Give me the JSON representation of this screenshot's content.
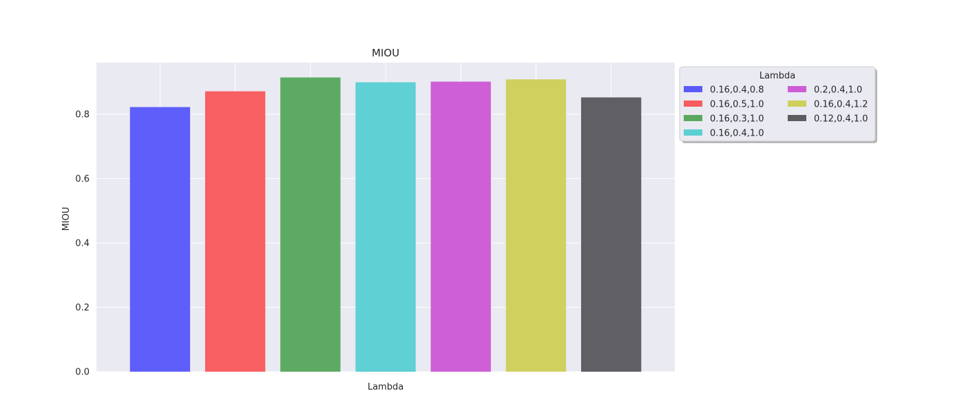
{
  "chart_data": {
    "type": "bar",
    "title": "MIOU",
    "xlabel": "Lambda",
    "ylabel": "MIOU",
    "ylim": [
      0,
      0.96
    ],
    "yticks": [
      "0.0",
      "0.2",
      "0.4",
      "0.6",
      "0.8"
    ],
    "grid": true,
    "legend": {
      "title": "Lambda",
      "placement": "outside-top-right",
      "columns": 2
    },
    "series": [
      {
        "name": "0.16,0.4,0.8",
        "value": 0.822,
        "color": "#5b5bfb"
      },
      {
        "name": "0.16,0.5,1.0",
        "value": 0.871,
        "color": "#f85c5f"
      },
      {
        "name": "0.16,0.3,1.0",
        "value": 0.914,
        "color": "#5aa95f"
      },
      {
        "name": "0.16,0.4,1.0",
        "value": 0.899,
        "color": "#5ccfd3"
      },
      {
        "name": "0.2,0.4,1.0",
        "value": 0.901,
        "color": "#cd5cd6"
      },
      {
        "name": "0.16,0.4,1.2",
        "value": 0.908,
        "color": "#cfcf5c"
      },
      {
        "name": "0.12,0.4,1.0",
        "value": 0.852,
        "color": "#5c5c61"
      }
    ]
  }
}
